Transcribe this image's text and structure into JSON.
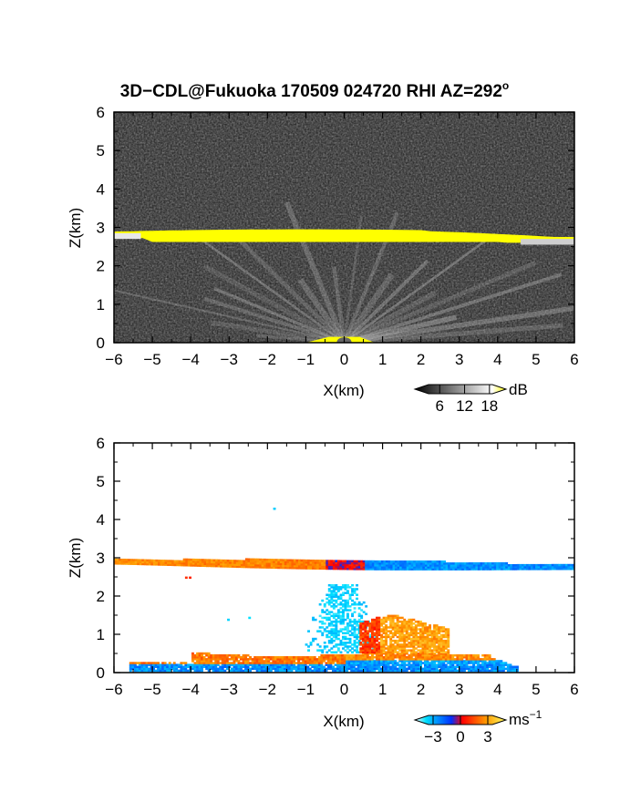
{
  "title": "3D−CDL@Fukuoka 170509 024720 RHI AZ=292",
  "title_degree": "o",
  "chart_data": [
    {
      "type": "heatmap",
      "quantity": "reflectivity",
      "xlabel": "X(km)",
      "ylabel": "Z(km)",
      "xlim": [
        -6,
        6
      ],
      "ylim": [
        0,
        6
      ],
      "xticks": [
        -6,
        -5,
        -4,
        -3,
        -2,
        -1,
        0,
        1,
        2,
        3,
        4,
        5,
        6
      ],
      "yticks": [
        0,
        1,
        2,
        3,
        4,
        5,
        6
      ],
      "colorbar": {
        "unit": "dB",
        "ticks": [
          6,
          12,
          18
        ],
        "range": [
          0,
          22
        ],
        "colors": [
          "#000000",
          "#ffffff",
          "#ffff00"
        ]
      },
      "features": {
        "layer_top_km": 2.95,
        "layer_bottom_km": 2.6,
        "layer_base_km": 2.75
      }
    },
    {
      "type": "heatmap",
      "quantity": "doppler_velocity",
      "xlabel": "X(km)",
      "ylabel": "Z(km)",
      "xlim": [
        -6,
        6
      ],
      "ylim": [
        0,
        6
      ],
      "xticks": [
        -6,
        -5,
        -4,
        -3,
        -2,
        -1,
        0,
        1,
        2,
        3,
        4,
        5,
        6
      ],
      "yticks": [
        0,
        1,
        2,
        3,
        4,
        5,
        6
      ],
      "colorbar": {
        "unit": "ms",
        "unit_exp": "−1",
        "ticks": [
          -3,
          0,
          3
        ],
        "tick_labels": [
          "−3",
          "0",
          "3"
        ],
        "range": [
          -5,
          5
        ],
        "colors": [
          "#ffffff",
          "#00e0ff",
          "#0030ff",
          "#ff0000",
          "#ff9900",
          "#ffff66"
        ]
      },
      "features": {
        "layer_z_km": 2.8,
        "sign_change_x_km": 0
      }
    }
  ]
}
